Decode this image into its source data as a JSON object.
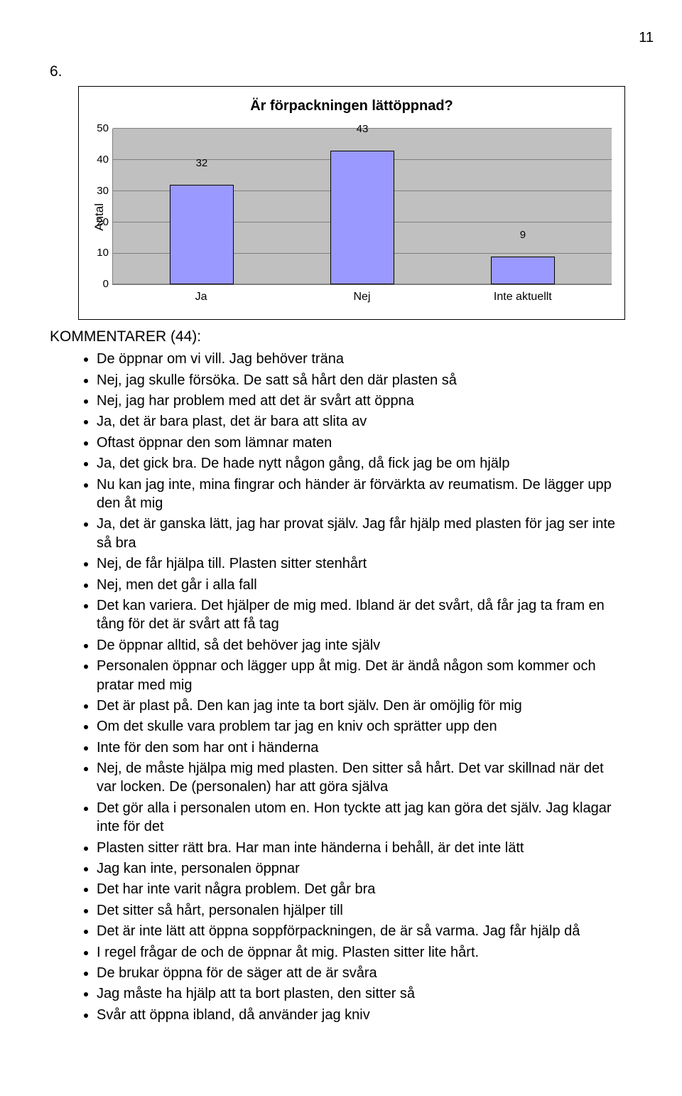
{
  "page_number": "11",
  "section_number": "6.",
  "chart": {
    "type": "bar",
    "title": "Är förpackningen lättöppnad?",
    "y_label": "Antal",
    "ylim_max": 50,
    "ytick_step": 10,
    "yticks": [
      0,
      10,
      20,
      30,
      40,
      50
    ],
    "categories": [
      "Ja",
      "Nej",
      "Inte aktuellt"
    ],
    "values": [
      32,
      43,
      9
    ],
    "bar_color": "#9999ff",
    "bg_color": "#c0c0c0",
    "grid_color": "#808080"
  },
  "comments_heading": "KOMMENTARER (44):",
  "comments": [
    "De öppnar om vi vill. Jag behöver träna",
    "Nej, jag skulle försöka. De satt så hårt den där plasten så",
    "Nej, jag har problem med att det är svårt att öppna",
    "Ja, det är bara plast, det är bara att slita av",
    "Oftast öppnar den som lämnar maten",
    "Ja, det gick bra. De hade nytt någon gång, då fick jag be om hjälp",
    "Nu kan jag inte, mina fingrar och händer är förvärkta av reumatism. De lägger upp den åt mig",
    "Ja, det är ganska lätt, jag har provat själv. Jag får hjälp med plasten för jag ser inte så bra",
    "Nej, de får hjälpa till. Plasten sitter stenhårt",
    "Nej, men det går i alla fall",
    "Det kan variera. Det hjälper de mig med. Ibland är det svårt, då får jag ta fram en tång för det är svårt att få tag",
    "De öppnar alltid, så det behöver jag inte själv",
    "Personalen öppnar och lägger upp åt mig. Det är ändå någon som kommer och pratar med mig",
    "Det är plast på. Den kan jag inte ta bort själv. Den är omöjlig för mig",
    "Om det skulle vara problem tar jag en kniv och sprätter upp den",
    "Inte för den som har ont i händerna",
    "Nej, de måste hjälpa mig med plasten. Den sitter så hårt. Det var skillnad när det var locken. De (personalen) har att göra själva",
    "Det gör alla i personalen utom en. Hon tyckte att jag kan göra det själv. Jag klagar inte för det",
    "Plasten sitter rätt bra. Har man inte händerna i behåll, är det inte lätt",
    "Jag kan inte, personalen öppnar",
    "Det har inte varit några problem. Det går bra",
    "Det sitter så hårt, personalen hjälper till",
    "Det är inte lätt att öppna soppförpackningen, de är så varma. Jag får hjälp då",
    "I regel frågar de och de öppnar åt mig. Plasten sitter lite hårt.",
    "De brukar öppna för de säger att de är svåra",
    "Jag måste ha hjälp att ta bort plasten, den sitter så",
    "Svår att öppna ibland, då använder jag kniv"
  ]
}
